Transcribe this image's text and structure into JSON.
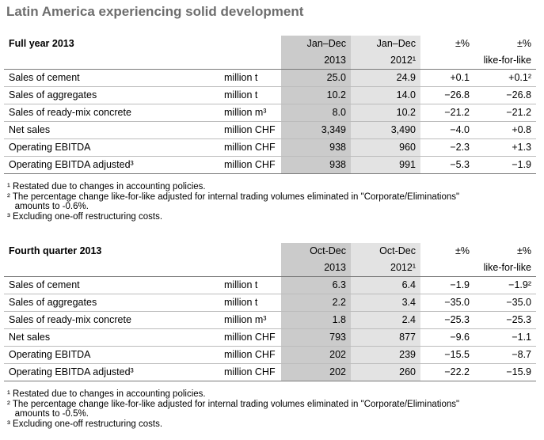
{
  "title": "Latin America experiencing solid development",
  "tables": [
    {
      "heading": "Full year 2013",
      "col_cur_top": "Jan–Dec",
      "col_cur_bottom": "2013",
      "col_prev_top": "Jan–Dec",
      "col_prev_bottom": "2012¹",
      "col_pct": "±%",
      "col_lfl_top": "±%",
      "col_lfl_bottom": "like-for-like",
      "rows": [
        {
          "label": "Sales of cement",
          "unit": "million t",
          "cur": "25.0",
          "prev": "24.9",
          "pct": "+0.1",
          "lfl": "+0.1²"
        },
        {
          "label": "Sales of aggregates",
          "unit": "million t",
          "cur": "10.2",
          "prev": "14.0",
          "pct": "−26.8",
          "lfl": "−26.8"
        },
        {
          "label": "Sales of ready-mix concrete",
          "unit": "million m³",
          "cur": "8.0",
          "prev": "10.2",
          "pct": "−21.2",
          "lfl": "−21.2"
        },
        {
          "label": "Net sales",
          "unit": "million CHF",
          "cur": "3,349",
          "prev": "3,490",
          "pct": "−4.0",
          "lfl": "+0.8"
        },
        {
          "label": "Operating EBITDA",
          "unit": "million CHF",
          "cur": "938",
          "prev": "960",
          "pct": "−2.3",
          "lfl": "+1.3"
        },
        {
          "label": "Operating EBITDA adjusted³",
          "unit": "million CHF",
          "cur": "938",
          "prev": "991",
          "pct": "−5.3",
          "lfl": "−1.9"
        }
      ],
      "notes": [
        "¹ Restated due to changes in accounting policies.",
        "² The percentage change like-for-like adjusted for internal trading volumes eliminated in \"Corporate/Eliminations\"",
        "   amounts to -0.6%.",
        "³ Excluding one-off restructuring costs."
      ]
    },
    {
      "heading": "Fourth quarter 2013",
      "col_cur_top": "Oct-Dec",
      "col_cur_bottom": "2013",
      "col_prev_top": "Oct-Dec",
      "col_prev_bottom": "2012¹",
      "col_pct": "±%",
      "col_lfl_top": "±%",
      "col_lfl_bottom": "like-for-like",
      "rows": [
        {
          "label": "Sales of cement",
          "unit": "million t",
          "cur": "6.3",
          "prev": "6.4",
          "pct": "−1.9",
          "lfl": "−1.9²"
        },
        {
          "label": "Sales of aggregates",
          "unit": "million t",
          "cur": "2.2",
          "prev": "3.4",
          "pct": "−35.0",
          "lfl": "−35.0"
        },
        {
          "label": "Sales of ready-mix concrete",
          "unit": "million m³",
          "cur": "1.8",
          "prev": "2.4",
          "pct": "−25.3",
          "lfl": "−25.3"
        },
        {
          "label": "Net sales",
          "unit": "million CHF",
          "cur": "793",
          "prev": "877",
          "pct": "−9.6",
          "lfl": "−1.1"
        },
        {
          "label": "Operating EBITDA",
          "unit": "million CHF",
          "cur": "202",
          "prev": "239",
          "pct": "−15.5",
          "lfl": "−8.7"
        },
        {
          "label": "Operating EBITDA adjusted³",
          "unit": "million CHF",
          "cur": "202",
          "prev": "260",
          "pct": "−22.2",
          "lfl": "−15.9"
        }
      ],
      "notes": [
        "¹ Restated due to changes in accounting policies.",
        "² The percentage change like-for-like adjusted for internal trading volumes eliminated in \"Corporate/Eliminations\"",
        "   amounts to -0.5%.",
        "³ Excluding one-off restructuring costs."
      ]
    }
  ]
}
